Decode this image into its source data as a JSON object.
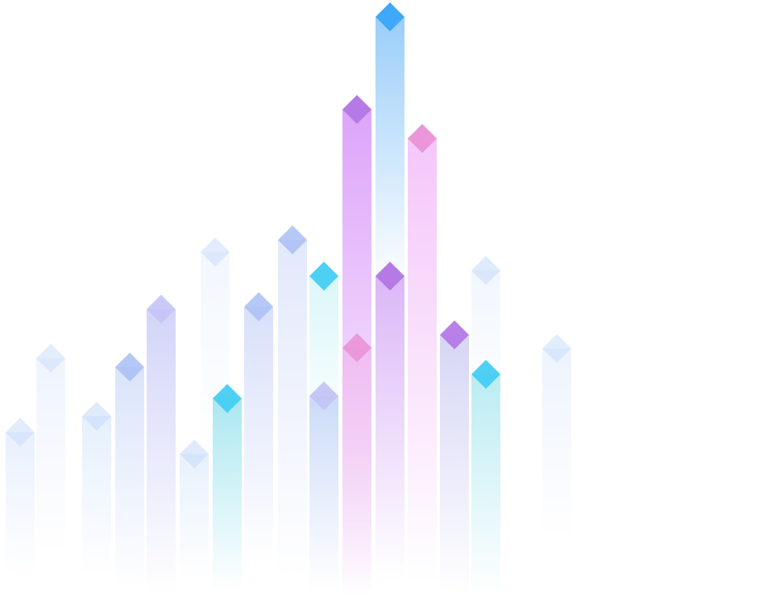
{
  "illustration": {
    "kind": "decorative-rising-bars",
    "palette": {
      "pale_blue": "#c9dcf9",
      "periwinkle": "#a9bef4",
      "lavender": "#c3c4f6",
      "cyan": "#45cdf4",
      "violet": "#b57ae6",
      "pink": "#ea96d8",
      "sky": "#3ea9f8"
    },
    "icons": [
      "diamond-icon"
    ]
  }
}
